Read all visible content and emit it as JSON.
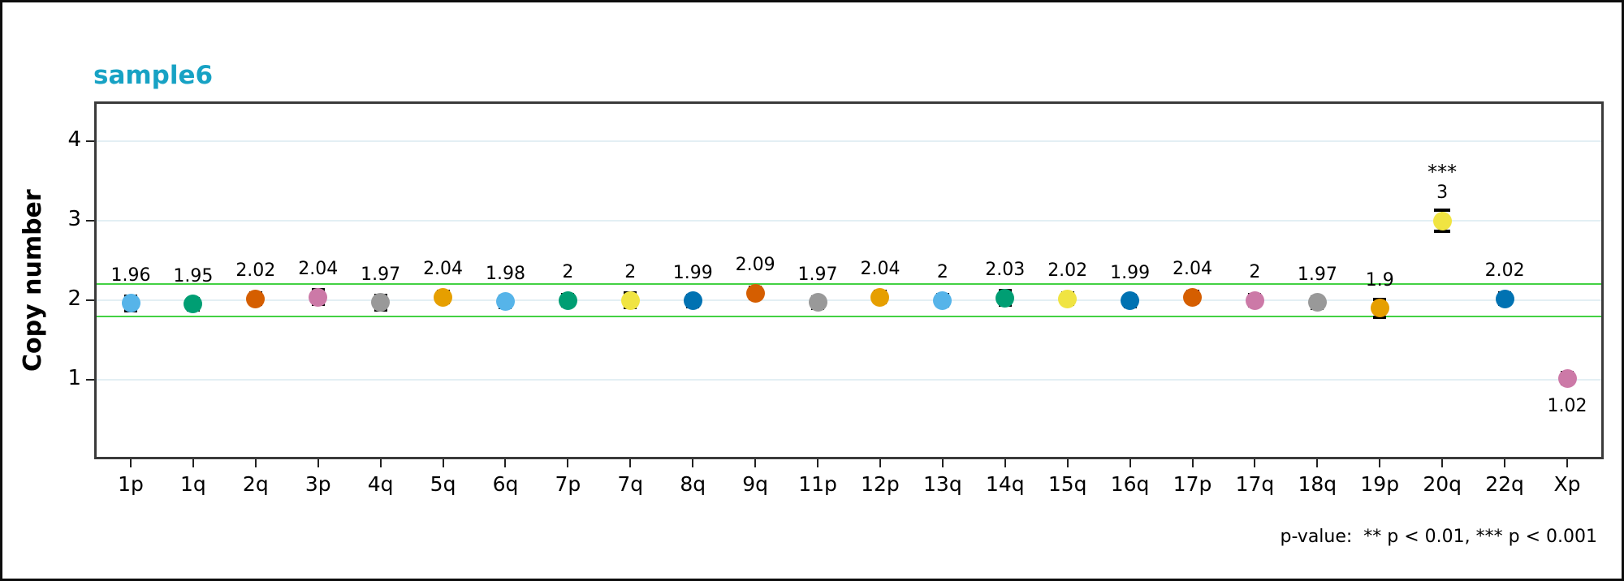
{
  "header": {
    "title": "sample6",
    "title_color": "#17a2c4"
  },
  "footnote": "p-value:  ** p < 0.01, *** p < 0.001",
  "chart_data": {
    "type": "scatter",
    "title": "sample6",
    "xlabel": "",
    "ylabel": "Copy number",
    "ylim": [
      0,
      4.5
    ],
    "yticks": [
      1,
      2,
      3,
      4
    ],
    "grid": "horizontal",
    "grid_color": "#e3eff4",
    "threshold_lines": [
      {
        "name": "lower",
        "y": 1.8,
        "color": "#43d143"
      },
      {
        "name": "upper",
        "y": 2.2,
        "color": "#43d143"
      }
    ],
    "legend": "none",
    "categories": [
      "1p",
      "1q",
      "2q",
      "3p",
      "4q",
      "5q",
      "6q",
      "7p",
      "7q",
      "8q",
      "9q",
      "11p",
      "12p",
      "13q",
      "14q",
      "15q",
      "16q",
      "17p",
      "17q",
      "18q",
      "19p",
      "20q",
      "22q",
      "Xp"
    ],
    "points": [
      {
        "arm": "1p",
        "value": 1.96,
        "label": "1.96",
        "color": "#56B4E9",
        "err": 0.09,
        "sig": "",
        "label_below": false
      },
      {
        "arm": "1q",
        "value": 1.95,
        "label": "1.95",
        "color": "#009E73",
        "err": 0.07,
        "sig": "",
        "label_below": false
      },
      {
        "arm": "2q",
        "value": 2.02,
        "label": "2.02",
        "color": "#D55E00",
        "err": 0.07,
        "sig": "",
        "label_below": false
      },
      {
        "arm": "3p",
        "value": 2.04,
        "label": "2.04",
        "color": "#CC79A7",
        "err": 0.09,
        "sig": "",
        "label_below": false
      },
      {
        "arm": "4q",
        "value": 1.97,
        "label": "1.97",
        "color": "#999999",
        "err": 0.09,
        "sig": "",
        "label_below": false
      },
      {
        "arm": "5q",
        "value": 2.04,
        "label": "2.04",
        "color": "#E69F00",
        "err": 0.07,
        "sig": "",
        "label_below": false
      },
      {
        "arm": "6q",
        "value": 1.98,
        "label": "1.98",
        "color": "#56B4E9",
        "err": 0.07,
        "sig": "",
        "label_below": false
      },
      {
        "arm": "7p",
        "value": 2,
        "label": "2",
        "color": "#009E73",
        "err": 0.07,
        "sig": "",
        "label_below": false
      },
      {
        "arm": "7q",
        "value": 2,
        "label": "2",
        "color": "#F0E442",
        "err": 0.09,
        "sig": "",
        "label_below": false
      },
      {
        "arm": "8q",
        "value": 1.99,
        "label": "1.99",
        "color": "#0072B2",
        "err": 0.07,
        "sig": "",
        "label_below": false
      },
      {
        "arm": "9q",
        "value": 2.09,
        "label": "2.09",
        "color": "#D55E00",
        "err": 0.07,
        "sig": "",
        "label_below": false
      },
      {
        "arm": "11p",
        "value": 1.97,
        "label": "1.97",
        "color": "#999999",
        "err": 0.07,
        "sig": "",
        "label_below": false
      },
      {
        "arm": "12p",
        "value": 2.04,
        "label": "2.04",
        "color": "#E69F00",
        "err": 0.07,
        "sig": "",
        "label_below": false
      },
      {
        "arm": "13q",
        "value": 2,
        "label": "2",
        "color": "#56B4E9",
        "err": 0.07,
        "sig": "",
        "label_below": false
      },
      {
        "arm": "14q",
        "value": 2.03,
        "label": "2.03",
        "color": "#009E73",
        "err": 0.09,
        "sig": "",
        "label_below": false
      },
      {
        "arm": "15q",
        "value": 2.02,
        "label": "2.02",
        "color": "#F0E442",
        "err": 0.07,
        "sig": "",
        "label_below": false
      },
      {
        "arm": "16q",
        "value": 1.99,
        "label": "1.99",
        "color": "#0072B2",
        "err": 0.07,
        "sig": "",
        "label_below": false
      },
      {
        "arm": "17p",
        "value": 2.04,
        "label": "2.04",
        "color": "#D55E00",
        "err": 0.07,
        "sig": "",
        "label_below": false
      },
      {
        "arm": "17q",
        "value": 2,
        "label": "2",
        "color": "#CC79A7",
        "err": 0.07,
        "sig": "",
        "label_below": false
      },
      {
        "arm": "18q",
        "value": 1.97,
        "label": "1.97",
        "color": "#999999",
        "err": 0.07,
        "sig": "",
        "label_below": false
      },
      {
        "arm": "19p",
        "value": 1.9,
        "label": "1.9",
        "color": "#E69F00",
        "err": 0.11,
        "sig": "",
        "label_below": false
      },
      {
        "arm": "20q",
        "value": 3,
        "label": "3",
        "color": "#F0E442",
        "err": 0.13,
        "sig": "***",
        "label_below": false
      },
      {
        "arm": "22q",
        "value": 2.02,
        "label": "2.02",
        "color": "#0072B2",
        "err": 0.07,
        "sig": "",
        "label_below": false
      },
      {
        "arm": "Xp",
        "value": 1.02,
        "label": "1.02",
        "color": "#CC79A7",
        "err": 0.07,
        "sig": "",
        "label_below": true
      }
    ],
    "significance_note": "p-value:  ** p < 0.01, *** p < 0.001"
  }
}
